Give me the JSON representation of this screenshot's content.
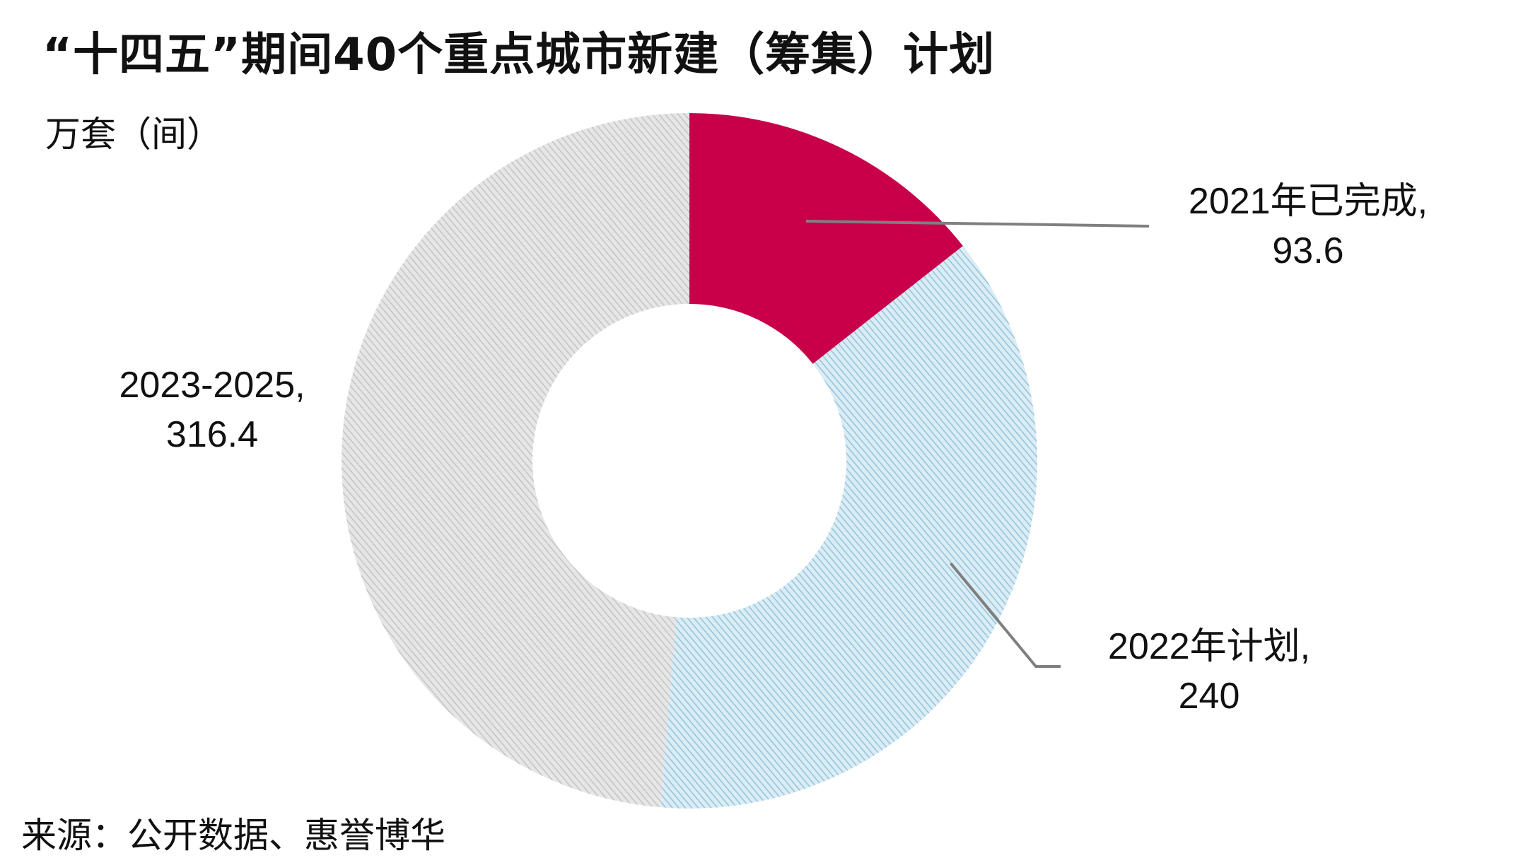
{
  "title": "“十四五”期间40个重点城市新建（筹集）计划",
  "unit": "万套（间）",
  "source": "来源：公开数据、惠誉博华",
  "colors": {
    "completed_2021": "#c8004a",
    "plan_2022": "#9dd0e6",
    "plan_2023_2025": "#cfcfcf",
    "leader": "#7f7f7f"
  },
  "chart_data": {
    "type": "pie",
    "variant": "donut",
    "title": "“十四五”期间40个重点城市新建（筹集）计划",
    "unit": "万套（间）",
    "legend": "none",
    "slices": [
      {
        "label": "2021年已完成",
        "value": 93.6,
        "display_value": "93.6",
        "color": "#c8004a",
        "pattern": "solid"
      },
      {
        "label": "2022年计划",
        "value": 240,
        "display_value": "240",
        "color": "#9dd0e6",
        "pattern": "hatched"
      },
      {
        "label": "2023-2025",
        "value": 316.4,
        "display_value": "316.4",
        "color": "#cfcfcf",
        "pattern": "hatched"
      }
    ]
  }
}
